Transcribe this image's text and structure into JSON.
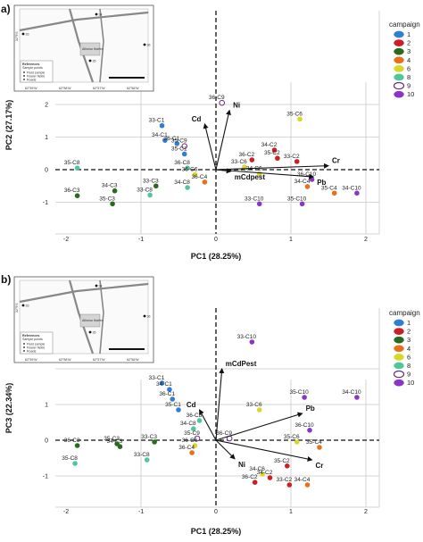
{
  "colors": {
    "1": "#2e7fd1",
    "2": "#cf1d25",
    "3": "#2a6a1e",
    "4": "#e8701a",
    "6": "#d8d828",
    "8": "#4fc79a",
    "9": "#ffffff",
    "10": "#8a35c9"
  },
  "chart_data": [
    {
      "type": "scatter",
      "panel_label": "a)",
      "xlabel": "PC1 (28.25%)",
      "ylabel": "PC2 (27.17%)",
      "xlim": [
        -2.4,
        2.4
      ],
      "ylim": [
        -1.75,
        2.3
      ],
      "xticks": [
        {
          "v": -2,
          "t": "-2"
        },
        {
          "v": -1,
          "t": "-1"
        },
        {
          "v": 0,
          "t": "0"
        },
        {
          "v": 1,
          "t": "1"
        },
        {
          "v": 2,
          "t": "2"
        }
      ],
      "yticks": [
        {
          "v": -1,
          "t": "-1"
        },
        {
          "v": 0,
          "t": "0"
        },
        {
          "v": 1,
          "t": "1"
        },
        {
          "v": 2,
          "t": "2"
        }
      ],
      "legend": {
        "title": "campaign",
        "entries": [
          "1",
          "2",
          "3",
          "4",
          "6",
          "8",
          "9",
          "10"
        ]
      },
      "points": [
        {
          "label": "36-C9",
          "c": "9",
          "x": 0.08,
          "y": 2.05
        },
        {
          "label": "33-C1",
          "c": "1",
          "x": -0.72,
          "y": 1.35
        },
        {
          "label": "34-C1",
          "c": "1",
          "x": -0.68,
          "y": 0.9
        },
        {
          "label": "36-C1",
          "c": "1",
          "x": -0.52,
          "y": 0.8
        },
        {
          "label": "35-C9",
          "c": "9",
          "x": -0.42,
          "y": 0.72
        },
        {
          "label": "35-C1",
          "c": "1",
          "x": -0.42,
          "y": 0.48
        },
        {
          "label": "35-C8",
          "c": "8",
          "x": -1.85,
          "y": 0.05
        },
        {
          "label": "36-C8",
          "c": "8",
          "x": -0.38,
          "y": 0.05
        },
        {
          "label": "36-C6",
          "c": "6",
          "x": -0.28,
          "y": -0.15
        },
        {
          "label": "36-C4",
          "c": "4",
          "x": -0.15,
          "y": -0.38
        },
        {
          "label": "34-C8",
          "c": "8",
          "x": -0.38,
          "y": -0.55
        },
        {
          "label": "33-C8",
          "c": "8",
          "x": -0.88,
          "y": -0.78
        },
        {
          "label": "33-C3",
          "c": "3",
          "x": -0.8,
          "y": -0.5
        },
        {
          "label": "34-C3",
          "c": "3",
          "x": -1.35,
          "y": -0.65
        },
        {
          "label": "36-C3",
          "c": "3",
          "x": -1.85,
          "y": -0.8
        },
        {
          "label": "35-C3",
          "c": "3",
          "x": -1.38,
          "y": -1.05
        },
        {
          "label": "36-C2",
          "c": "2",
          "x": 0.48,
          "y": 0.3
        },
        {
          "label": "34-C2",
          "c": "2",
          "x": 0.78,
          "y": 0.6
        },
        {
          "label": "35-C2",
          "c": "2",
          "x": 0.82,
          "y": 0.35
        },
        {
          "label": "33-C2",
          "c": "2",
          "x": 1.08,
          "y": 0.25
        },
        {
          "label": "35-C6",
          "c": "6",
          "x": 1.12,
          "y": 1.55
        },
        {
          "label": "33-C6",
          "c": "6",
          "x": 0.38,
          "y": 0.08
        },
        {
          "label": "34-C6",
          "c": "6",
          "x": 0.58,
          "y": -0.12
        },
        {
          "label": "36-C10",
          "c": "10",
          "x": 1.28,
          "y": -0.3
        },
        {
          "label": "34-C4",
          "c": "4",
          "x": 1.22,
          "y": -0.52
        },
        {
          "label": "35-C4",
          "c": "4",
          "x": 1.58,
          "y": -0.72
        },
        {
          "label": "34-C10",
          "c": "10",
          "x": 1.88,
          "y": -0.72
        },
        {
          "label": "33-C10",
          "c": "10",
          "x": 0.58,
          "y": -1.05
        },
        {
          "label": "35-C10",
          "c": "10",
          "x": 1.15,
          "y": -1.05
        }
      ],
      "loadings": [
        {
          "label": "Cd",
          "x": -0.15,
          "y": 1.4
        },
        {
          "label": "Ni",
          "x": 0.18,
          "y": 1.82
        },
        {
          "label": "Cr",
          "x": 1.5,
          "y": 0.12
        },
        {
          "label": "Pb",
          "x": 1.3,
          "y": -0.22
        },
        {
          "label": "mCdpest",
          "x": 0.2,
          "y": -0.05
        }
      ]
    },
    {
      "type": "scatter",
      "panel_label": "b)",
      "xlabel": "PC1 (28.25%)",
      "ylabel": "PC3 (22.34%)",
      "xlim": [
        -2.4,
        2.4
      ],
      "ylim": [
        -1.75,
        3.1
      ],
      "xticks": [
        {
          "v": -2,
          "t": "-2"
        },
        {
          "v": -1,
          "t": "-1"
        },
        {
          "v": 0,
          "t": "0"
        },
        {
          "v": 1,
          "t": "1"
        },
        {
          "v": 2,
          "t": "2"
        }
      ],
      "yticks": [
        {
          "v": -1,
          "t": "-1"
        },
        {
          "v": 0,
          "t": "0"
        },
        {
          "v": 1,
          "t": "1"
        }
      ],
      "legend": {
        "title": "campaign",
        "entries": [
          "1",
          "2",
          "3",
          "4",
          "6",
          "8",
          "9",
          "10"
        ]
      },
      "points": [
        {
          "label": "33-C10",
          "c": "10",
          "x": 0.48,
          "y": 2.75
        },
        {
          "label": "33-C1",
          "c": "1",
          "x": -0.72,
          "y": 1.6
        },
        {
          "label": "34-C1",
          "c": "1",
          "x": -0.62,
          "y": 1.42
        },
        {
          "label": "36-C1",
          "c": "1",
          "x": -0.58,
          "y": 1.15
        },
        {
          "label": "35-C1",
          "c": "1",
          "x": -0.5,
          "y": 0.85
        },
        {
          "label": "36-C8",
          "c": "8",
          "x": -0.22,
          "y": 0.55
        },
        {
          "label": "34-C8",
          "c": "8",
          "x": -0.3,
          "y": 0.32
        },
        {
          "label": "35-C9",
          "c": "9",
          "x": -0.25,
          "y": 0.05
        },
        {
          "label": "36-C6",
          "c": "6",
          "x": -0.28,
          "y": -0.15
        },
        {
          "label": "36-C4",
          "c": "4",
          "x": -0.32,
          "y": -0.35
        },
        {
          "label": "36-C9",
          "c": "9",
          "x": 0.18,
          "y": 0.05
        },
        {
          "label": "33-C3",
          "c": "3",
          "x": -0.82,
          "y": -0.05
        },
        {
          "label": "34-C3",
          "c": "3",
          "x": -1.28,
          "y": -0.18
        },
        {
          "label": "35-C3",
          "c": "3",
          "x": -1.32,
          "y": -0.1
        },
        {
          "label": "36-C3",
          "c": "3",
          "x": -1.85,
          "y": -0.15
        },
        {
          "label": "35-C8",
          "c": "8",
          "x": -1.88,
          "y": -0.65
        },
        {
          "label": "33-C8",
          "c": "8",
          "x": -0.92,
          "y": -0.55
        },
        {
          "label": "33-C6",
          "c": "6",
          "x": 0.58,
          "y": 0.85
        },
        {
          "label": "34-C6",
          "c": "6",
          "x": 0.62,
          "y": -0.95
        },
        {
          "label": "36-C2",
          "c": "2",
          "x": 0.52,
          "y": -1.18
        },
        {
          "label": "34-C2",
          "c": "2",
          "x": 0.72,
          "y": -1.05
        },
        {
          "label": "35-C2",
          "c": "2",
          "x": 0.95,
          "y": -0.72
        },
        {
          "label": "33-C2",
          "c": "2",
          "x": 0.98,
          "y": -1.25
        },
        {
          "label": "34-C4",
          "c": "4",
          "x": 1.22,
          "y": -1.25
        },
        {
          "label": "35-C4",
          "c": "4",
          "x": 1.38,
          "y": -0.2
        },
        {
          "label": "35-C6",
          "c": "6",
          "x": 1.08,
          "y": -0.05
        },
        {
          "label": "36-C10",
          "c": "10",
          "x": 1.25,
          "y": 0.28
        },
        {
          "label": "35-C10",
          "c": "10",
          "x": 1.18,
          "y": 1.2
        },
        {
          "label": "34-C10",
          "c": "10",
          "x": 1.88,
          "y": 1.2
        }
      ],
      "loadings": [
        {
          "label": "mCdPest",
          "x": 0.08,
          "y": 2.0
        },
        {
          "label": "Cd",
          "x": -0.22,
          "y": 0.85
        },
        {
          "label": "Pb",
          "x": 1.15,
          "y": 0.75
        },
        {
          "label": "Cr",
          "x": 1.28,
          "y": -0.55
        },
        {
          "label": "Ni",
          "x": 0.25,
          "y": -0.52
        }
      ]
    }
  ],
  "maps": [
    {
      "legend_title": "References",
      "legend_subtitle": "Sample points",
      "legend_items": [
        "Field sample",
        "Flower fields",
        "Roads"
      ],
      "places": [
        "Alfonso Ibañez"
      ],
      "axis_labels": [
        "62°59'W",
        "62°58'W",
        "62°57'W",
        "62°56'W",
        "32°9'S"
      ],
      "site_labels": [
        "34",
        "33",
        "35",
        "36"
      ]
    },
    {
      "legend_title": "References",
      "legend_subtitle": "Sample points",
      "legend_items": [
        "Field sample",
        "Flower fields",
        "Roads"
      ],
      "places": [
        "Alfonso Ibañez"
      ],
      "axis_labels": [
        "62°59'W",
        "62°58'W",
        "62°57'W",
        "62°56'W",
        "32°9'S"
      ],
      "site_labels": [
        "34",
        "33",
        "35",
        "36"
      ]
    }
  ]
}
